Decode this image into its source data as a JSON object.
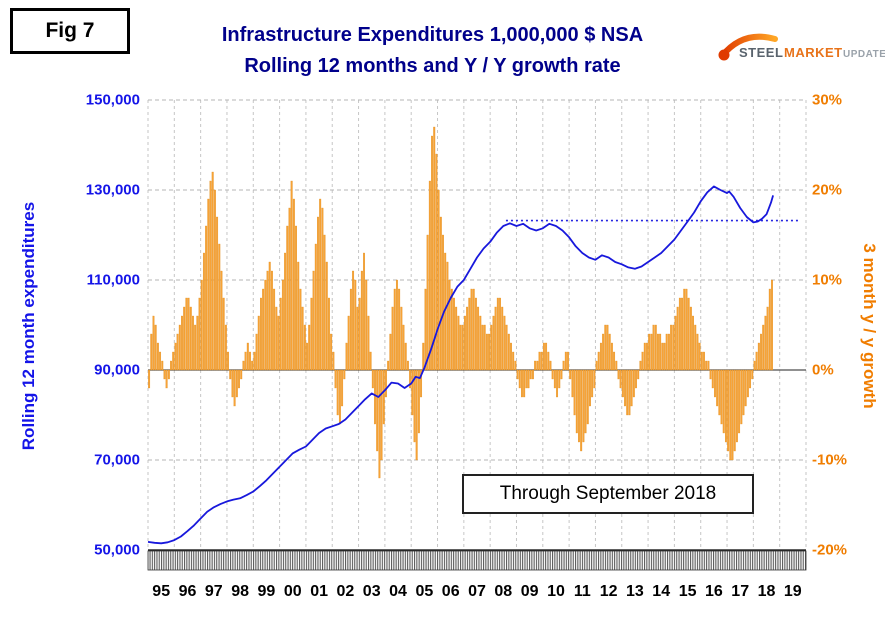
{
  "fig_label": "Fig 7",
  "title": {
    "line1": "Infrastructure Expenditures 1,000,000 $ NSA",
    "line2": "Rolling 12 months and Y / Y growth rate"
  },
  "logo": {
    "word1": "STEEL",
    "word2": "MARKET",
    "word3": "UPDATE"
  },
  "annotation": "Through September 2018",
  "axes": {
    "left_title": "Rolling 12 month expenditures",
    "right_title": "3 month y / y growth",
    "left_ticks": [
      "150,000",
      "130,000",
      "110,000",
      "90,000",
      "70,000",
      "50,000"
    ],
    "right_ticks": [
      "30%",
      "20%",
      "10%",
      "0%",
      "-10%",
      "-20%"
    ],
    "x_ticks": [
      "95",
      "96",
      "97",
      "98",
      "99",
      "00",
      "01",
      "02",
      "03",
      "04",
      "05",
      "06",
      "07",
      "08",
      "09",
      "10",
      "11",
      "12",
      "13",
      "14",
      "15",
      "16",
      "17",
      "18",
      "19"
    ]
  },
  "colors": {
    "title": "#00008B",
    "axis_left": "#1414E8",
    "axis_right": "#F07D00",
    "line": "#1818DC",
    "bars": "#F7A337",
    "bars_edge": "#DF8C1C",
    "dotted": "#2424E0",
    "grid": "#c6c6c6",
    "zero_line": "#4d4d4d",
    "band": "#5a5a5a"
  },
  "chart_data": {
    "type": "line+bar",
    "title": "Infrastructure Expenditures 1,000,000 $ NSA — Rolling 12 months and Y / Y growth rate",
    "x_range": [
      1995,
      2020
    ],
    "left_ylim": [
      50000,
      150000
    ],
    "right_ylim": [
      -20,
      30
    ],
    "grid": true,
    "bars": {
      "name": "3 month y / y growth (%)",
      "start_year": 1995,
      "months_per_year": 12,
      "values_pct": [
        -2,
        4,
        6,
        5,
        3,
        2,
        1,
        -1,
        -2,
        -1,
        1,
        2,
        3,
        4,
        5,
        6,
        7,
        8,
        8,
        7,
        6,
        5,
        6,
        8,
        10,
        13,
        16,
        19,
        21,
        22,
        20,
        17,
        14,
        11,
        8,
        5,
        2,
        -1,
        -3,
        -4,
        -3,
        -2,
        -1,
        1,
        2,
        3,
        2,
        1,
        2,
        4,
        6,
        8,
        9,
        10,
        11,
        12,
        11,
        9,
        7,
        6,
        8,
        10,
        13,
        16,
        18,
        21,
        19,
        16,
        12,
        9,
        7,
        5,
        3,
        5,
        8,
        11,
        14,
        17,
        19,
        18,
        15,
        12,
        8,
        4,
        2,
        -2,
        -5,
        -6,
        -4,
        -1,
        3,
        6,
        9,
        11,
        10,
        7,
        8,
        11,
        13,
        10,
        6,
        2,
        -2,
        -6,
        -9,
        -12,
        -10,
        -6,
        -3,
        1,
        4,
        7,
        9,
        10,
        9,
        7,
        5,
        3,
        1,
        -2,
        -5,
        -8,
        -10,
        -7,
        -3,
        3,
        9,
        15,
        21,
        26,
        27,
        24,
        20,
        17,
        15,
        13,
        12,
        10,
        9,
        8,
        7,
        6,
        5,
        5,
        6,
        7,
        8,
        9,
        9,
        8,
        7,
        6,
        5,
        5,
        4,
        4,
        5,
        6,
        7,
        8,
        8,
        7,
        6,
        5,
        4,
        3,
        2,
        1,
        -1,
        -2,
        -3,
        -3,
        -2,
        -2,
        -1,
        -1,
        1,
        1,
        2,
        2,
        3,
        3,
        2,
        1,
        -1,
        -2,
        -3,
        -2,
        -1,
        1,
        2,
        2,
        -1,
        -3,
        -5,
        -7,
        -8,
        -9,
        -8,
        -7,
        -6,
        -4,
        -3,
        -2,
        1,
        2,
        3,
        4,
        5,
        5,
        4,
        3,
        2,
        1,
        -1,
        -2,
        -3,
        -4,
        -5,
        -5,
        -4,
        -3,
        -2,
        -1,
        1,
        2,
        3,
        3,
        4,
        4,
        5,
        5,
        4,
        4,
        3,
        3,
        4,
        4,
        5,
        5,
        6,
        7,
        8,
        8,
        9,
        9,
        8,
        7,
        6,
        5,
        4,
        3,
        2,
        2,
        1,
        1,
        -1,
        -2,
        -3,
        -4,
        -5,
        -6,
        -7,
        -8,
        -9,
        -10,
        -10,
        -9,
        -8,
        -7,
        -6,
        -5,
        -4,
        -3,
        -2,
        -1,
        1,
        2,
        3,
        4,
        5,
        6,
        7,
        9,
        10
      ]
    },
    "line": {
      "name": "Rolling 12 month expenditures ($)",
      "points": [
        [
          1995.0,
          51800
        ],
        [
          1995.25,
          51600
        ],
        [
          1995.5,
          51500
        ],
        [
          1995.75,
          51700
        ],
        [
          1996.0,
          52200
        ],
        [
          1996.25,
          53000
        ],
        [
          1996.5,
          54200
        ],
        [
          1996.75,
          55500
        ],
        [
          1997.0,
          57000
        ],
        [
          1997.25,
          58500
        ],
        [
          1997.5,
          59500
        ],
        [
          1997.75,
          60200
        ],
        [
          1998.0,
          60800
        ],
        [
          1998.25,
          61200
        ],
        [
          1998.5,
          61500
        ],
        [
          1998.75,
          62200
        ],
        [
          1999.0,
          63000
        ],
        [
          1999.25,
          64200
        ],
        [
          1999.5,
          65500
        ],
        [
          1999.75,
          67000
        ],
        [
          2000.0,
          68500
        ],
        [
          2000.25,
          70000
        ],
        [
          2000.5,
          71500
        ],
        [
          2000.75,
          72300
        ],
        [
          2001.0,
          73000
        ],
        [
          2001.25,
          74500
        ],
        [
          2001.5,
          76000
        ],
        [
          2001.75,
          77000
        ],
        [
          2002.0,
          77500
        ],
        [
          2002.25,
          78000
        ],
        [
          2002.5,
          79000
        ],
        [
          2002.75,
          80500
        ],
        [
          2003.0,
          82000
        ],
        [
          2003.25,
          83500
        ],
        [
          2003.5,
          84800
        ],
        [
          2003.75,
          84000
        ],
        [
          2004.0,
          85500
        ],
        [
          2004.25,
          87200
        ],
        [
          2004.5,
          87000
        ],
        [
          2004.75,
          86000
        ],
        [
          2005.0,
          87000
        ],
        [
          2005.17,
          88500
        ],
        [
          2005.33,
          88200
        ],
        [
          2005.5,
          90500
        ],
        [
          2005.75,
          94500
        ],
        [
          2006.0,
          99000
        ],
        [
          2006.25,
          103000
        ],
        [
          2006.5,
          106000
        ],
        [
          2006.75,
          108500
        ],
        [
          2007.0,
          110000
        ],
        [
          2007.25,
          112500
        ],
        [
          2007.5,
          115000
        ],
        [
          2007.75,
          117000
        ],
        [
          2008.0,
          118500
        ],
        [
          2008.25,
          120500
        ],
        [
          2008.5,
          122000
        ],
        [
          2008.75,
          122600
        ],
        [
          2009.0,
          122000
        ],
        [
          2009.25,
          122500
        ],
        [
          2009.5,
          121500
        ],
        [
          2009.75,
          121000
        ],
        [
          2010.0,
          121500
        ],
        [
          2010.25,
          122500
        ],
        [
          2010.5,
          122000
        ],
        [
          2010.75,
          121000
        ],
        [
          2011.0,
          119500
        ],
        [
          2011.25,
          117500
        ],
        [
          2011.5,
          116000
        ],
        [
          2011.75,
          115000
        ],
        [
          2012.0,
          114500
        ],
        [
          2012.25,
          115500
        ],
        [
          2012.5,
          115000
        ],
        [
          2012.75,
          114000
        ],
        [
          2013.0,
          113500
        ],
        [
          2013.25,
          112800
        ],
        [
          2013.5,
          112500
        ],
        [
          2013.75,
          113000
        ],
        [
          2014.0,
          114000
        ],
        [
          2014.25,
          115000
        ],
        [
          2014.5,
          116000
        ],
        [
          2014.75,
          117500
        ],
        [
          2015.0,
          119000
        ],
        [
          2015.25,
          121000
        ],
        [
          2015.5,
          123000
        ],
        [
          2015.75,
          125000
        ],
        [
          2016.0,
          127500
        ],
        [
          2016.25,
          129500
        ],
        [
          2016.5,
          130800
        ],
        [
          2016.75,
          130000
        ],
        [
          2017.0,
          129300
        ],
        [
          2017.08,
          129700
        ],
        [
          2017.25,
          128500
        ],
        [
          2017.5,
          126000
        ],
        [
          2017.75,
          124000
        ],
        [
          2018.0,
          122800
        ],
        [
          2018.17,
          123000
        ],
        [
          2018.33,
          123600
        ],
        [
          2018.5,
          124600
        ],
        [
          2018.58,
          125800
        ],
        [
          2018.67,
          127200
        ],
        [
          2018.75,
          128800
        ]
      ]
    },
    "dotted_reference": {
      "value": 123200,
      "x_start": 2008.6,
      "x_end": 2019.8
    }
  }
}
